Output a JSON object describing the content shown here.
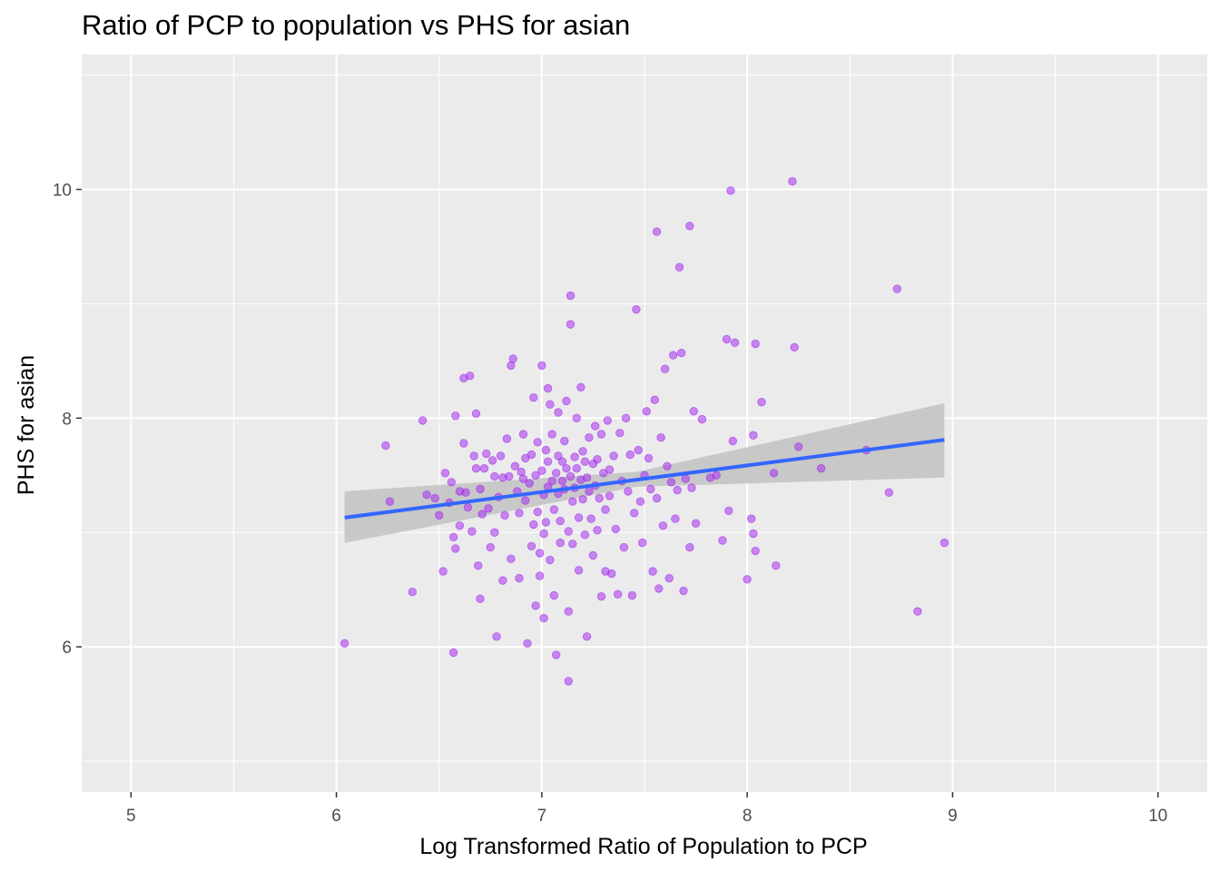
{
  "chart_data": {
    "type": "scatter",
    "title": "Ratio of PCP to population vs PHS for asian",
    "xlabel": "Log Transformed Ratio of Population to PCP",
    "ylabel": "PHS for asian",
    "xlim": [
      4.76,
      10.24
    ],
    "ylim": [
      4.73,
      11.18
    ],
    "x_ticks": [
      5,
      6,
      7,
      8,
      9,
      10
    ],
    "x_tick_labels": [
      "5",
      "6",
      "7",
      "8",
      "9",
      "10"
    ],
    "y_ticks": [
      6,
      8,
      10
    ],
    "y_tick_labels": [
      "6",
      "8",
      "10"
    ],
    "grid": true,
    "point_color": "#a020f0",
    "fit_line_color": "#3366ff",
    "ci_band_color": "#c4c4c4",
    "panel_background": "#ebebeb",
    "fit": {
      "type": "linear",
      "x_range": [
        6.04,
        8.96
      ],
      "y_start": 7.13,
      "y_end": 7.81,
      "ci_start": [
        6.91,
        7.36
      ],
      "ci_end": [
        7.48,
        8.13
      ],
      "ci_mid_x": 7.46,
      "ci_mid": [
        7.4,
        7.53
      ]
    },
    "points": [
      [
        6.04,
        6.03
      ],
      [
        6.24,
        7.76
      ],
      [
        6.26,
        7.27
      ],
      [
        6.37,
        6.48
      ],
      [
        6.42,
        7.98
      ],
      [
        6.44,
        7.33
      ],
      [
        6.48,
        7.3
      ],
      [
        6.5,
        7.15
      ],
      [
        6.52,
        6.66
      ],
      [
        6.53,
        7.52
      ],
      [
        6.55,
        7.26
      ],
      [
        6.56,
        7.44
      ],
      [
        6.57,
        6.96
      ],
      [
        6.57,
        5.95
      ],
      [
        6.58,
        8.02
      ],
      [
        6.58,
        6.86
      ],
      [
        6.6,
        7.36
      ],
      [
        6.6,
        7.06
      ],
      [
        6.62,
        8.35
      ],
      [
        6.62,
        7.78
      ],
      [
        6.63,
        7.35
      ],
      [
        6.64,
        7.22
      ],
      [
        6.65,
        8.37
      ],
      [
        6.66,
        7.01
      ],
      [
        6.67,
        7.67
      ],
      [
        6.68,
        7.56
      ],
      [
        6.68,
        8.04
      ],
      [
        6.69,
        6.71
      ],
      [
        6.7,
        7.38
      ],
      [
        6.7,
        6.42
      ],
      [
        6.71,
        7.16
      ],
      [
        6.72,
        7.56
      ],
      [
        6.73,
        7.69
      ],
      [
        6.74,
        7.21
      ],
      [
        6.75,
        6.87
      ],
      [
        6.76,
        7.63
      ],
      [
        6.77,
        7.49
      ],
      [
        6.77,
        7.0
      ],
      [
        6.78,
        6.09
      ],
      [
        6.79,
        7.31
      ],
      [
        6.8,
        7.67
      ],
      [
        6.81,
        7.48
      ],
      [
        6.81,
        6.58
      ],
      [
        6.82,
        7.15
      ],
      [
        6.83,
        7.82
      ],
      [
        6.84,
        7.49
      ],
      [
        6.85,
        8.46
      ],
      [
        6.85,
        6.77
      ],
      [
        6.86,
        8.52
      ],
      [
        6.87,
        7.58
      ],
      [
        6.88,
        7.36
      ],
      [
        6.89,
        7.17
      ],
      [
        6.89,
        6.6
      ],
      [
        6.9,
        7.53
      ],
      [
        6.91,
        7.86
      ],
      [
        6.91,
        7.47
      ],
      [
        6.92,
        7.65
      ],
      [
        6.92,
        7.28
      ],
      [
        6.93,
        6.03
      ],
      [
        6.94,
        7.43
      ],
      [
        6.95,
        7.68
      ],
      [
        6.95,
        6.88
      ],
      [
        6.96,
        8.18
      ],
      [
        6.96,
        7.07
      ],
      [
        6.97,
        7.5
      ],
      [
        6.97,
        6.36
      ],
      [
        6.98,
        7.79
      ],
      [
        6.98,
        7.18
      ],
      [
        6.99,
        6.82
      ],
      [
        6.99,
        6.62
      ],
      [
        7.0,
        8.46
      ],
      [
        7.0,
        7.54
      ],
      [
        7.01,
        7.33
      ],
      [
        7.01,
        6.99
      ],
      [
        7.01,
        6.25
      ],
      [
        7.02,
        7.72
      ],
      [
        7.02,
        7.09
      ],
      [
        7.03,
        8.26
      ],
      [
        7.03,
        7.62
      ],
      [
        7.03,
        7.4
      ],
      [
        7.04,
        8.12
      ],
      [
        7.04,
        6.76
      ],
      [
        7.05,
        7.86
      ],
      [
        7.05,
        7.45
      ],
      [
        7.06,
        7.2
      ],
      [
        7.06,
        6.45
      ],
      [
        7.07,
        7.52
      ],
      [
        7.07,
        5.93
      ],
      [
        7.08,
        8.05
      ],
      [
        7.08,
        7.67
      ],
      [
        7.08,
        7.34
      ],
      [
        7.09,
        7.1
      ],
      [
        7.09,
        6.91
      ],
      [
        7.1,
        7.62
      ],
      [
        7.1,
        7.45
      ],
      [
        7.11,
        7.8
      ],
      [
        7.11,
        7.38
      ],
      [
        7.12,
        8.15
      ],
      [
        7.12,
        7.56
      ],
      [
        7.13,
        7.01
      ],
      [
        7.13,
        6.31
      ],
      [
        7.13,
        5.7
      ],
      [
        7.14,
        9.07
      ],
      [
        7.14,
        8.82
      ],
      [
        7.14,
        7.49
      ],
      [
        7.15,
        7.27
      ],
      [
        7.15,
        6.9
      ],
      [
        7.16,
        7.66
      ],
      [
        7.16,
        7.39
      ],
      [
        7.17,
        8.0
      ],
      [
        7.17,
        7.56
      ],
      [
        7.18,
        7.13
      ],
      [
        7.18,
        6.67
      ],
      [
        7.19,
        8.27
      ],
      [
        7.19,
        7.46
      ],
      [
        7.2,
        7.71
      ],
      [
        7.2,
        7.29
      ],
      [
        7.21,
        7.62
      ],
      [
        7.21,
        6.98
      ],
      [
        7.22,
        7.48
      ],
      [
        7.22,
        6.09
      ],
      [
        7.23,
        7.83
      ],
      [
        7.23,
        7.36
      ],
      [
        7.24,
        7.12
      ],
      [
        7.25,
        7.6
      ],
      [
        7.25,
        6.8
      ],
      [
        7.26,
        7.93
      ],
      [
        7.26,
        7.41
      ],
      [
        7.27,
        7.64
      ],
      [
        7.27,
        7.02
      ],
      [
        7.28,
        7.3
      ],
      [
        7.29,
        7.86
      ],
      [
        7.29,
        6.44
      ],
      [
        7.3,
        7.52
      ],
      [
        7.31,
        7.2
      ],
      [
        7.31,
        6.66
      ],
      [
        7.32,
        7.98
      ],
      [
        7.33,
        7.55
      ],
      [
        7.33,
        7.32
      ],
      [
        7.34,
        6.64
      ],
      [
        7.35,
        7.67
      ],
      [
        7.36,
        7.03
      ],
      [
        7.37,
        6.46
      ],
      [
        7.38,
        7.87
      ],
      [
        7.39,
        7.45
      ],
      [
        7.4,
        6.87
      ],
      [
        7.41,
        8.0
      ],
      [
        7.42,
        7.36
      ],
      [
        7.43,
        7.68
      ],
      [
        7.44,
        6.45
      ],
      [
        7.45,
        7.17
      ],
      [
        7.46,
        8.95
      ],
      [
        7.47,
        7.72
      ],
      [
        7.48,
        7.27
      ],
      [
        7.49,
        6.91
      ],
      [
        7.5,
        7.5
      ],
      [
        7.51,
        8.06
      ],
      [
        7.52,
        7.65
      ],
      [
        7.53,
        7.38
      ],
      [
        7.54,
        6.66
      ],
      [
        7.55,
        8.16
      ],
      [
        7.56,
        9.63
      ],
      [
        7.56,
        7.3
      ],
      [
        7.57,
        6.51
      ],
      [
        7.58,
        7.83
      ],
      [
        7.59,
        7.06
      ],
      [
        7.6,
        8.43
      ],
      [
        7.61,
        7.58
      ],
      [
        7.62,
        6.6
      ],
      [
        7.63,
        7.44
      ],
      [
        7.64,
        8.55
      ],
      [
        7.65,
        7.12
      ],
      [
        7.66,
        7.37
      ],
      [
        7.67,
        9.32
      ],
      [
        7.68,
        8.57
      ],
      [
        7.69,
        6.49
      ],
      [
        7.7,
        7.47
      ],
      [
        7.72,
        9.68
      ],
      [
        7.72,
        6.87
      ],
      [
        7.73,
        7.39
      ],
      [
        7.74,
        8.06
      ],
      [
        7.75,
        7.08
      ],
      [
        7.78,
        7.99
      ],
      [
        7.82,
        7.48
      ],
      [
        7.85,
        7.5
      ],
      [
        7.88,
        6.93
      ],
      [
        7.9,
        8.69
      ],
      [
        7.91,
        7.19
      ],
      [
        7.92,
        9.99
      ],
      [
        7.93,
        7.8
      ],
      [
        7.94,
        8.66
      ],
      [
        8.0,
        6.59
      ],
      [
        8.02,
        7.12
      ],
      [
        8.03,
        7.85
      ],
      [
        8.03,
        6.99
      ],
      [
        8.04,
        6.84
      ],
      [
        8.04,
        8.65
      ],
      [
        8.07,
        8.14
      ],
      [
        8.13,
        7.52
      ],
      [
        8.14,
        6.71
      ],
      [
        8.22,
        10.07
      ],
      [
        8.23,
        8.62
      ],
      [
        8.25,
        7.75
      ],
      [
        8.36,
        7.56
      ],
      [
        8.58,
        7.72
      ],
      [
        8.69,
        7.35
      ],
      [
        8.73,
        9.13
      ],
      [
        8.83,
        6.31
      ],
      [
        8.96,
        6.91
      ]
    ]
  }
}
